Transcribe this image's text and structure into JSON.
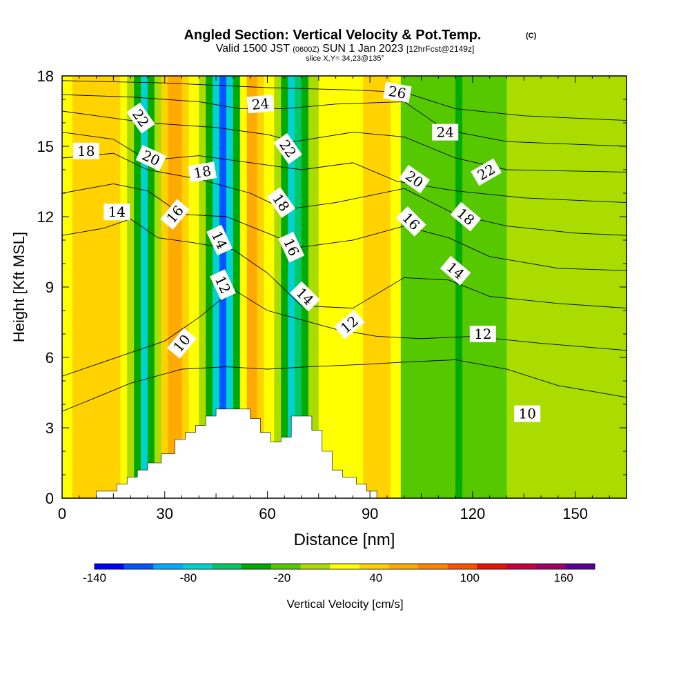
{
  "chart_data": {
    "type": "heatmap",
    "title": "Angled Section: Vertical Velocity & Pot.Temp.",
    "title_mark": "(C)",
    "subtitle_parts": {
      "a": "Valid 1500 JST",
      "b": "(0600Z)",
      "c": "SUN 1 Jan 2023",
      "d": "[12hrFcst@2149z]"
    },
    "slice_note": "slice X,Y= 34,23@135°",
    "xlabel": "Distance [nm]",
    "ylabel": "Height [Kft MSL]",
    "xlim": [
      0,
      165
    ],
    "ylim": [
      0,
      18
    ],
    "x_ticks": [
      0,
      30,
      60,
      90,
      120,
      150
    ],
    "y_ticks": [
      0,
      3,
      6,
      9,
      12,
      15,
      18
    ],
    "colorbar": {
      "label": "Vertical Velocity [cm/s]",
      "min": -140,
      "max": 180,
      "step": 20,
      "tick_values": [
        -140,
        -80,
        -20,
        40,
        100,
        160
      ],
      "tick_labels": [
        "-140",
        "-80",
        "-20",
        "40",
        "100",
        "160"
      ],
      "colors": [
        "#0000ff",
        "#0055ff",
        "#00aaff",
        "#00d2d2",
        "#00c864",
        "#00aa00",
        "#55c800",
        "#aadc00",
        "#ffff00",
        "#ffd200",
        "#ffaa00",
        "#ff8200",
        "#ff5000",
        "#e61400",
        "#c8003c",
        "#a00064",
        "#5a0096"
      ]
    },
    "velocity_bands": [
      {
        "x": 0,
        "x_end": 3,
        "value": 20
      },
      {
        "x": 3,
        "x_end": 17,
        "value": 40
      },
      {
        "x": 17,
        "x_end": 19,
        "value": 20
      },
      {
        "x": 19,
        "x_end": 21,
        "value": 0
      },
      {
        "x": 21,
        "x_end": 23,
        "value": -30
      },
      {
        "x": 23,
        "x_end": 25,
        "value": -70
      },
      {
        "x": 25,
        "x_end": 27,
        "value": -30
      },
      {
        "x": 27,
        "x_end": 29,
        "value": 10
      },
      {
        "x": 29,
        "x_end": 31,
        "value": 50
      },
      {
        "x": 31,
        "x_end": 35,
        "value": 70
      },
      {
        "x": 35,
        "x_end": 37,
        "value": 50
      },
      {
        "x": 37,
        "x_end": 40,
        "value": 30
      },
      {
        "x": 40,
        "x_end": 42,
        "value": 10
      },
      {
        "x": 42,
        "x_end": 44,
        "value": -30
      },
      {
        "x": 44,
        "x_end": 46,
        "value": -70
      },
      {
        "x": 46,
        "x_end": 48,
        "value": -110
      },
      {
        "x": 48,
        "x_end": 50,
        "value": -70
      },
      {
        "x": 50,
        "x_end": 52,
        "value": -30
      },
      {
        "x": 52,
        "x_end": 54,
        "value": 30
      },
      {
        "x": 54,
        "x_end": 57,
        "value": 70
      },
      {
        "x": 57,
        "x_end": 59,
        "value": 50
      },
      {
        "x": 59,
        "x_end": 62,
        "value": 30
      },
      {
        "x": 62,
        "x_end": 64,
        "value": 0
      },
      {
        "x": 64,
        "x_end": 66,
        "value": -40
      },
      {
        "x": 66,
        "x_end": 68,
        "value": -80
      },
      {
        "x": 68,
        "x_end": 70,
        "value": -60
      },
      {
        "x": 70,
        "x_end": 72,
        "value": -30
      },
      {
        "x": 72,
        "x_end": 75,
        "value": 0
      },
      {
        "x": 75,
        "x_end": 79,
        "value": 20
      },
      {
        "x": 79,
        "x_end": 88,
        "value": 30
      },
      {
        "x": 88,
        "x_end": 96,
        "value": 40
      },
      {
        "x": 96,
        "x_end": 99,
        "value": 20
      },
      {
        "x": 99,
        "x_end": 103,
        "value": -10
      },
      {
        "x": 103,
        "x_end": 115,
        "value": -20
      },
      {
        "x": 115,
        "x_end": 117,
        "value": -40
      },
      {
        "x": 117,
        "x_end": 124,
        "value": -20
      },
      {
        "x": 124,
        "x_end": 130,
        "value": -10
      },
      {
        "x": 130,
        "x_end": 138,
        "value": 0
      },
      {
        "x": 138,
        "x_end": 147,
        "value": 10
      },
      {
        "x": 147,
        "x_end": 152,
        "value": 0
      },
      {
        "x": 152,
        "x_end": 165,
        "value": 10
      }
    ],
    "terrain": [
      [
        10,
        0
      ],
      [
        10,
        0.3
      ],
      [
        16,
        0.3
      ],
      [
        16,
        0.6
      ],
      [
        19,
        0.6
      ],
      [
        19,
        0.9
      ],
      [
        22,
        0.9
      ],
      [
        22,
        1.2
      ],
      [
        25,
        1.2
      ],
      [
        25,
        1.5
      ],
      [
        29,
        1.5
      ],
      [
        29,
        1.9
      ],
      [
        33,
        1.9
      ],
      [
        33,
        2.5
      ],
      [
        36,
        2.5
      ],
      [
        36,
        2.8
      ],
      [
        39,
        2.8
      ],
      [
        39,
        3.1
      ],
      [
        42,
        3.1
      ],
      [
        42,
        3.5
      ],
      [
        45,
        3.5
      ],
      [
        45,
        3.8
      ],
      [
        55,
        3.8
      ],
      [
        55,
        3.4
      ],
      [
        58,
        3.4
      ],
      [
        58,
        2.8
      ],
      [
        61,
        2.8
      ],
      [
        61,
        2.4
      ],
      [
        64,
        2.4
      ],
      [
        64,
        2.6
      ],
      [
        67,
        2.6
      ],
      [
        67,
        3.5
      ],
      [
        73,
        3.5
      ],
      [
        73,
        2.9
      ],
      [
        76,
        2.9
      ],
      [
        76,
        2.0
      ],
      [
        79,
        2.0
      ],
      [
        79,
        1.2
      ],
      [
        82,
        1.2
      ],
      [
        82,
        0.9
      ],
      [
        86,
        0.9
      ],
      [
        86,
        0.6
      ],
      [
        89,
        0.6
      ],
      [
        89,
        0.3
      ],
      [
        92,
        0.3
      ],
      [
        92,
        0
      ]
    ],
    "theta_contours": [
      {
        "level": 10,
        "points": [
          [
            0,
            3.7
          ],
          [
            20,
            4.9
          ],
          [
            35,
            5.5
          ],
          [
            48,
            5.6
          ],
          [
            60,
            5.5
          ],
          [
            72,
            5.6
          ],
          [
            88,
            5.7
          ],
          [
            100,
            5.8
          ],
          [
            115,
            5.9
          ],
          [
            130,
            5.5
          ],
          [
            145,
            4.8
          ],
          [
            165,
            4.3
          ]
        ]
      },
      {
        "level": 12,
        "points": [
          [
            0,
            5.2
          ],
          [
            18,
            6.1
          ],
          [
            30,
            6.7
          ],
          [
            40,
            7.7
          ],
          [
            50,
            8.9
          ],
          [
            60,
            8.0
          ],
          [
            70,
            7.6
          ],
          [
            80,
            7.2
          ],
          [
            92,
            6.9
          ],
          [
            105,
            6.8
          ],
          [
            120,
            6.9
          ],
          [
            140,
            6.6
          ],
          [
            165,
            6.3
          ]
        ]
      },
      {
        "level": 14,
        "points": [
          [
            0,
            11.2
          ],
          [
            12,
            11.5
          ],
          [
            20,
            11.9
          ],
          [
            28,
            11.1
          ],
          [
            38,
            10.9
          ],
          [
            50,
            10.6
          ],
          [
            60,
            9.6
          ],
          [
            70,
            8.2
          ],
          [
            85,
            8.1
          ],
          [
            100,
            9.4
          ],
          [
            113,
            9.3
          ],
          [
            125,
            8.6
          ],
          [
            145,
            8.3
          ],
          [
            165,
            8.1
          ]
        ]
      },
      {
        "level": 16,
        "points": [
          [
            0,
            13.0
          ],
          [
            15,
            13.4
          ],
          [
            25,
            13.1
          ],
          [
            35,
            12.1
          ],
          [
            48,
            12.0
          ],
          [
            60,
            11.3
          ],
          [
            70,
            10.7
          ],
          [
            85,
            11.0
          ],
          [
            100,
            11.6
          ],
          [
            113,
            11.1
          ],
          [
            125,
            10.3
          ],
          [
            145,
            9.8
          ],
          [
            165,
            9.7
          ]
        ]
      },
      {
        "level": 18,
        "points": [
          [
            0,
            14.5
          ],
          [
            15,
            14.7
          ],
          [
            25,
            14.0
          ],
          [
            40,
            13.6
          ],
          [
            55,
            13.0
          ],
          [
            65,
            12.3
          ],
          [
            80,
            12.6
          ],
          [
            100,
            13.2
          ],
          [
            115,
            12.1
          ],
          [
            130,
            11.6
          ],
          [
            150,
            11.3
          ],
          [
            165,
            11.2
          ]
        ]
      },
      {
        "level": 20,
        "points": [
          [
            0,
            15.6
          ],
          [
            15,
            15.3
          ],
          [
            25,
            14.4
          ],
          [
            40,
            14.6
          ],
          [
            55,
            14.3
          ],
          [
            70,
            14.0
          ],
          [
            85,
            14.3
          ],
          [
            98,
            13.5
          ],
          [
            115,
            13.1
          ],
          [
            135,
            12.8
          ],
          [
            165,
            12.6
          ]
        ]
      },
      {
        "level": 22,
        "points": [
          [
            0,
            16.5
          ],
          [
            15,
            16.2
          ],
          [
            25,
            16.0
          ],
          [
            45,
            15.8
          ],
          [
            60,
            15.5
          ],
          [
            68,
            15.2
          ],
          [
            85,
            15.6
          ],
          [
            100,
            15.4
          ],
          [
            115,
            14.5
          ],
          [
            130,
            14.0
          ],
          [
            165,
            13.9
          ]
        ]
      },
      {
        "level": 24,
        "points": [
          [
            0,
            17.2
          ],
          [
            20,
            17.1
          ],
          [
            40,
            16.9
          ],
          [
            52,
            16.6
          ],
          [
            65,
            16.6
          ],
          [
            80,
            16.8
          ],
          [
            100,
            16.9
          ],
          [
            112,
            15.7
          ],
          [
            130,
            15.2
          ],
          [
            165,
            15.0
          ]
        ]
      },
      {
        "level": 26,
        "points": [
          [
            0,
            17.8
          ],
          [
            30,
            17.7
          ],
          [
            60,
            17.5
          ],
          [
            85,
            17.4
          ],
          [
            100,
            17.3
          ],
          [
            115,
            16.6
          ],
          [
            135,
            16.3
          ],
          [
            165,
            16.1
          ]
        ]
      }
    ],
    "contour_labels": [
      {
        "text": "22",
        "x": 23,
        "y": 16.2,
        "angle": 55
      },
      {
        "text": "18",
        "x": 7,
        "y": 14.8,
        "angle": 0
      },
      {
        "text": "20",
        "x": 26,
        "y": 14.5,
        "angle": 25
      },
      {
        "text": "14",
        "x": 16,
        "y": 12.2,
        "angle": 0
      },
      {
        "text": "18",
        "x": 41,
        "y": 13.9,
        "angle": -10
      },
      {
        "text": "16",
        "x": 33,
        "y": 12.1,
        "angle": -50
      },
      {
        "text": "24",
        "x": 58,
        "y": 16.8,
        "angle": -5
      },
      {
        "text": "22",
        "x": 66,
        "y": 14.9,
        "angle": 55
      },
      {
        "text": "18",
        "x": 64,
        "y": 12.6,
        "angle": 55
      },
      {
        "text": "14",
        "x": 46,
        "y": 11.0,
        "angle": 65
      },
      {
        "text": "16",
        "x": 67,
        "y": 10.7,
        "angle": 65
      },
      {
        "text": "12",
        "x": 47,
        "y": 9.1,
        "angle": 65
      },
      {
        "text": "14",
        "x": 71,
        "y": 8.6,
        "angle": 45
      },
      {
        "text": "10",
        "x": 35,
        "y": 6.6,
        "angle": -50
      },
      {
        "text": "12",
        "x": 84,
        "y": 7.4,
        "angle": -40
      },
      {
        "text": "26",
        "x": 98,
        "y": 17.3,
        "angle": 10
      },
      {
        "text": "24",
        "x": 112,
        "y": 15.6,
        "angle": 0
      },
      {
        "text": "22",
        "x": 124,
        "y": 13.9,
        "angle": -30
      },
      {
        "text": "20",
        "x": 103,
        "y": 13.6,
        "angle": 35
      },
      {
        "text": "16",
        "x": 102,
        "y": 11.8,
        "angle": 45
      },
      {
        "text": "18",
        "x": 118,
        "y": 12.0,
        "angle": 40
      },
      {
        "text": "14",
        "x": 115,
        "y": 9.7,
        "angle": 40
      },
      {
        "text": "12",
        "x": 123,
        "y": 7.0,
        "angle": 0
      },
      {
        "text": "10",
        "x": 136,
        "y": 3.6,
        "angle": 0
      }
    ]
  }
}
